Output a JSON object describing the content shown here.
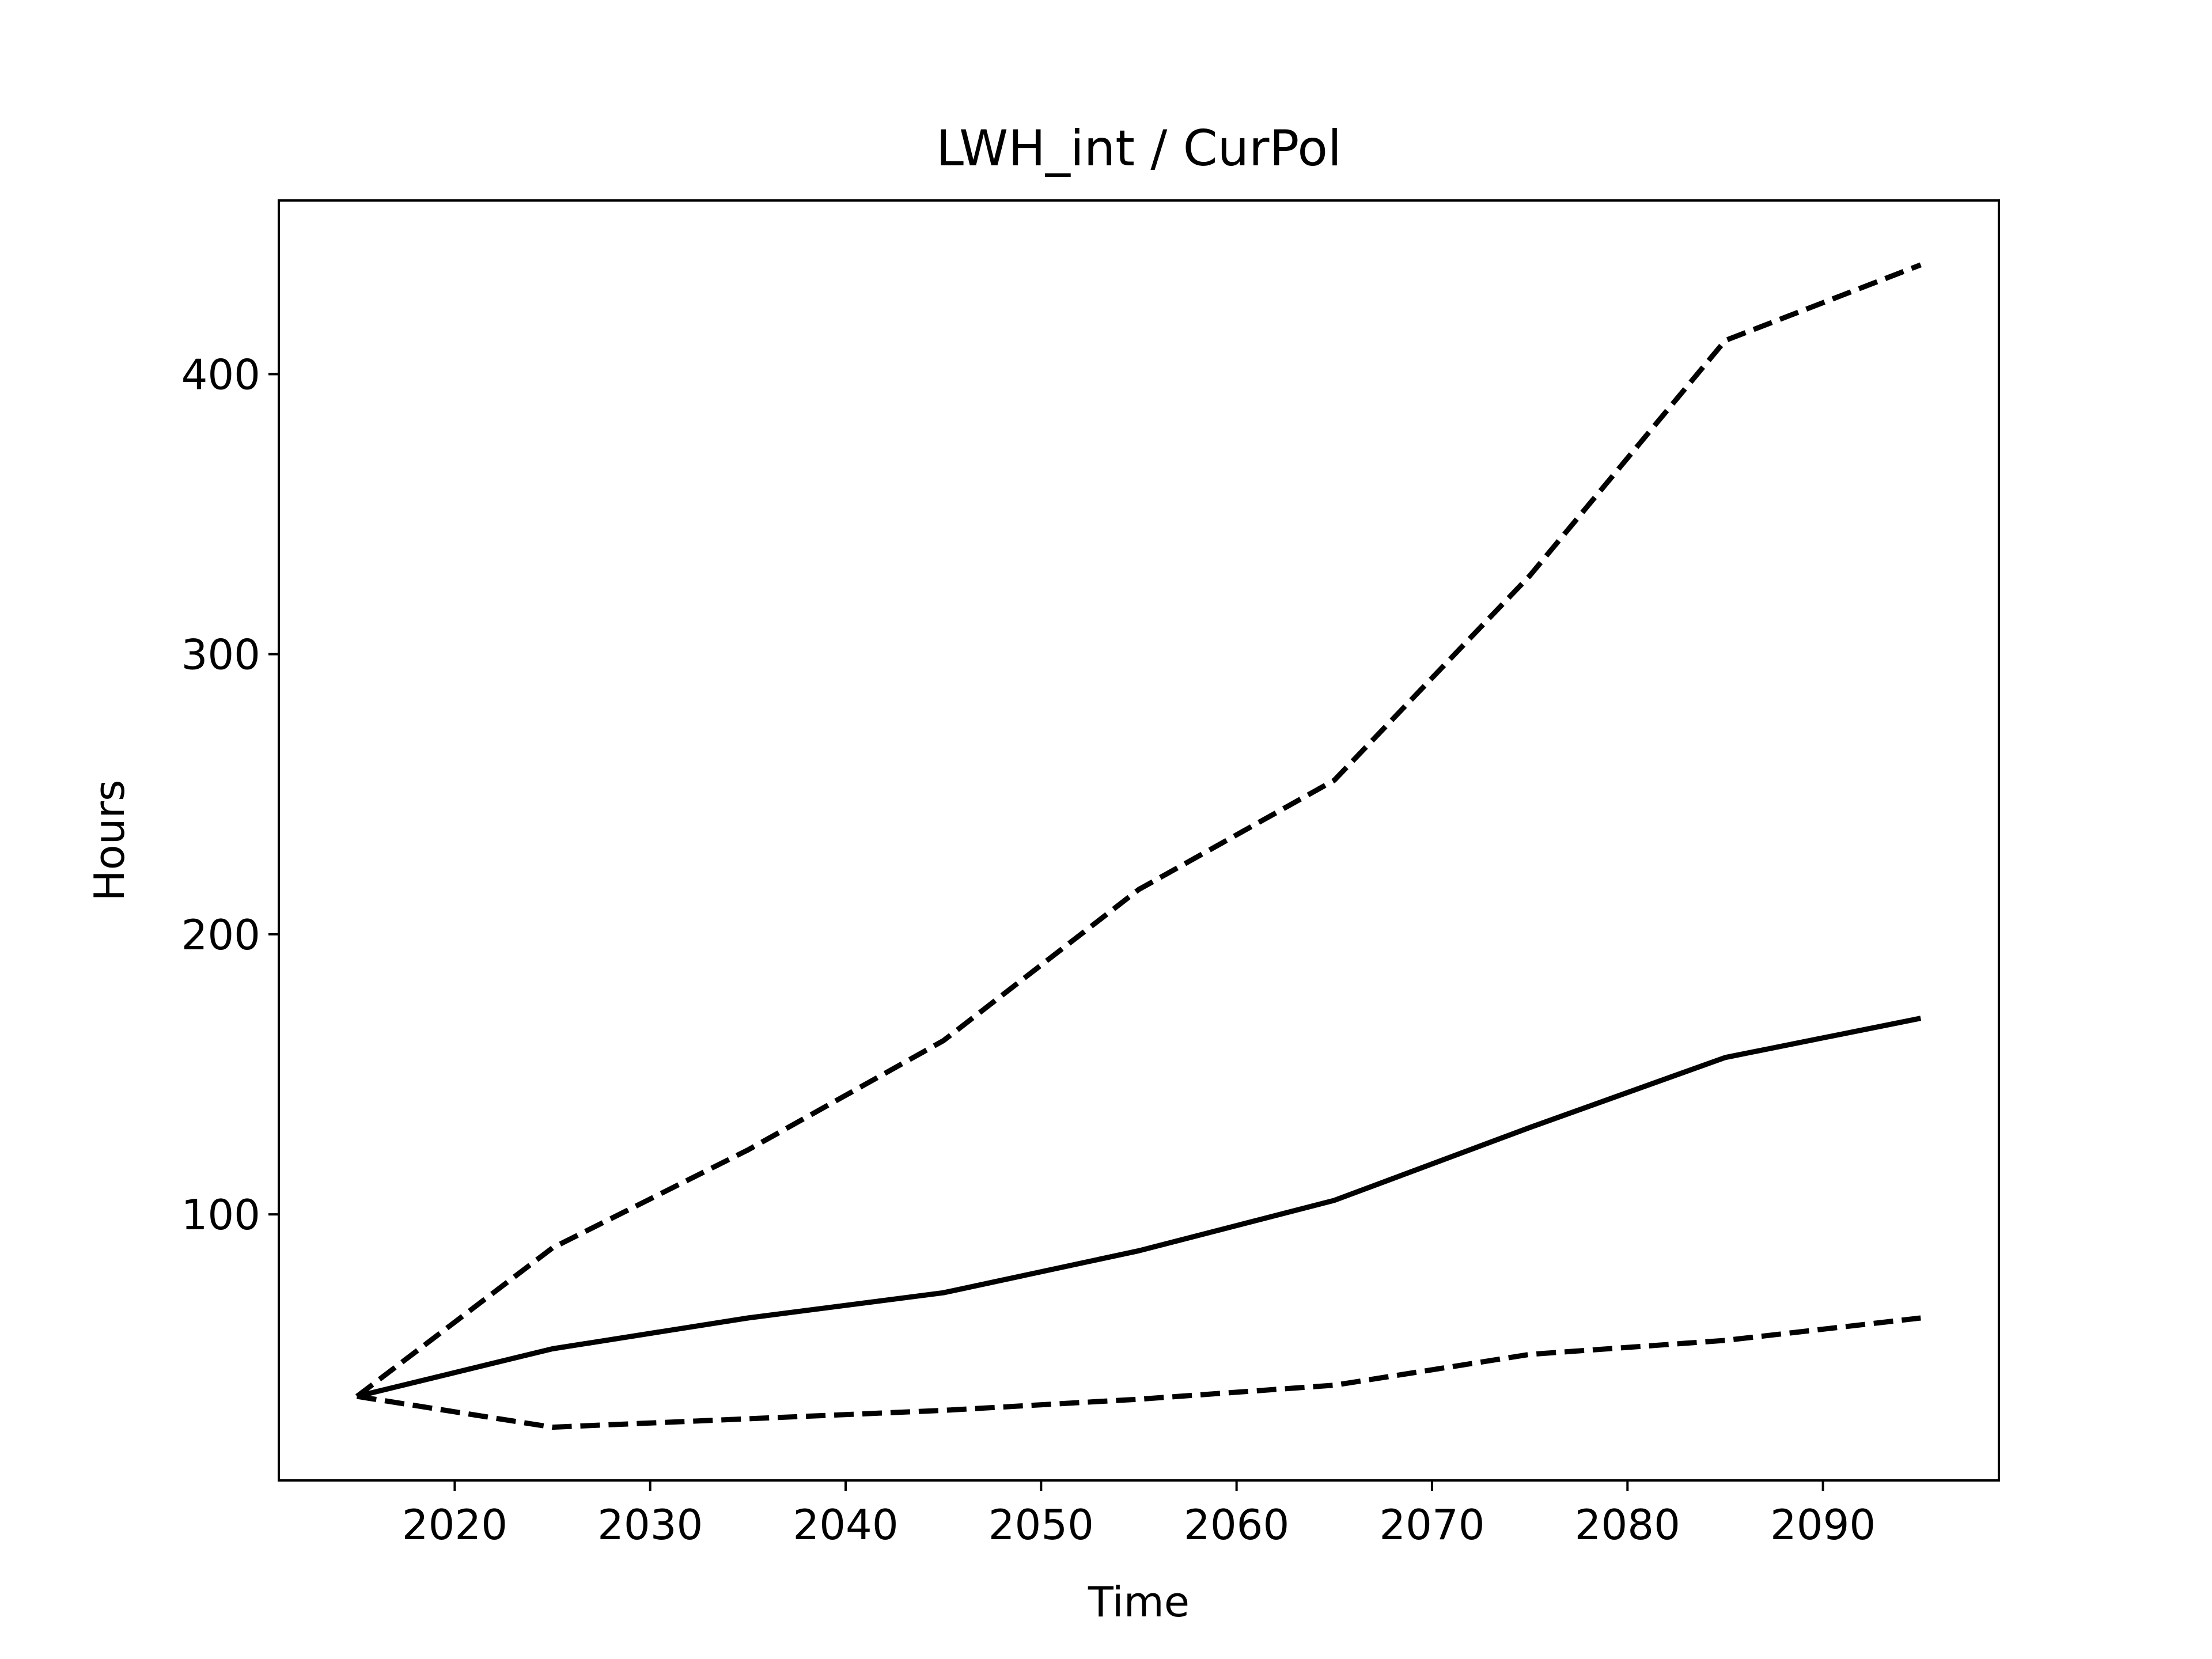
{
  "chart_data": {
    "type": "line",
    "title": "LWH_int / CurPol",
    "xlabel": "Time",
    "ylabel": "Hours",
    "xlim": [
      2011,
      2099
    ],
    "ylim": [
      5,
      462
    ],
    "x_ticks": [
      2020,
      2030,
      2040,
      2050,
      2060,
      2070,
      2080,
      2090
    ],
    "y_ticks": [
      100,
      200,
      300,
      400
    ],
    "grid": false,
    "legend": "none",
    "x": [
      2015,
      2025,
      2035,
      2045,
      2055,
      2065,
      2075,
      2085,
      2095
    ],
    "series": [
      {
        "style": "dashed",
        "color": "#000000",
        "values": [
          35,
          88,
          123,
          162,
          216,
          255,
          328,
          412,
          439
        ]
      },
      {
        "style": "solid",
        "color": "#000000",
        "values": [
          35,
          52,
          63,
          72,
          87,
          105,
          131,
          156,
          170
        ]
      },
      {
        "style": "dashed",
        "color": "#000000",
        "values": [
          35,
          24,
          27,
          30,
          34,
          39,
          50,
          55,
          63
        ]
      }
    ]
  }
}
